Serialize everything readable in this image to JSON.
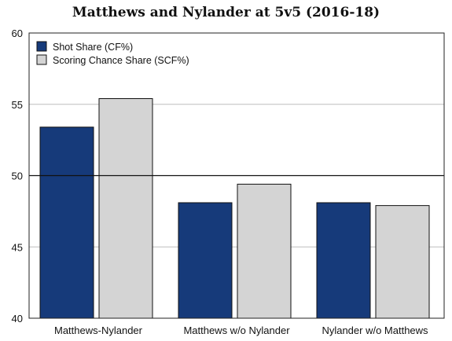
{
  "chart_data": {
    "type": "bar",
    "title": "Matthews and Nylander at 5v5 (2016-18)",
    "xlabel": "",
    "ylabel": "",
    "categories": [
      "Matthews-Nylander",
      "Matthews w/o Nylander",
      "Nylander w/o Matthews"
    ],
    "series": [
      {
        "name": "Shot Share (CF%)",
        "color": "#163a7a",
        "values": [
          53.4,
          48.1,
          48.1
        ]
      },
      {
        "name": "Scoring Chance Share (SCF%)",
        "color": "#d4d4d4",
        "values": [
          55.4,
          49.4,
          47.9
        ]
      }
    ],
    "ylim": [
      40,
      60
    ],
    "yticks": [
      40,
      45,
      50,
      55,
      60
    ],
    "reference_line": 50,
    "grid": true,
    "legend_position": "top-left"
  }
}
